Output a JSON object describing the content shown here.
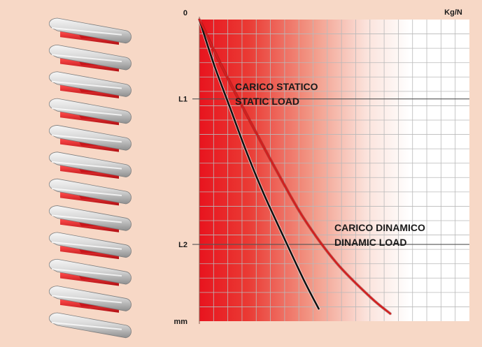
{
  "colors": {
    "background": "#f7d8c6",
    "grid_fill_start": "#e8141e",
    "grid_fill_end": "#ffffff",
    "static_curve": "#111111",
    "dynamic_curve": "#d21f1f",
    "spring_coil": "#d8d8d8",
    "spring_inner": "#e0141e"
  },
  "chart_data": {
    "type": "line",
    "title": "",
    "x_unit_label": "Kg/N",
    "y_unit_label": "mm",
    "y_tick_labels": [
      "0",
      "L1",
      "L2",
      "mm"
    ],
    "y_tick_values": [
      0,
      0.2632,
      0.7456,
      1.0
    ],
    "grid": true,
    "x_range": [
      0,
      1
    ],
    "y_range": [
      0,
      1
    ],
    "series": [
      {
        "name_lines": [
          "CARICO STATICO",
          "STATIC LOAD"
        ],
        "color": "#111111",
        "x": [
          0,
          0.054,
          0.113,
          0.172,
          0.237,
          0.31,
          0.386,
          0.442
        ],
        "y": [
          0,
          0.149,
          0.291,
          0.433,
          0.575,
          0.717,
          0.862,
          0.959
        ]
      },
      {
        "name_lines": [
          "CARICO DINAMICO",
          "DINAMIC LOAD"
        ],
        "color": "#d21f1f",
        "x": [
          0,
          0.088,
          0.183,
          0.281,
          0.386,
          0.507,
          0.634,
          0.707
        ],
        "y": [
          0,
          0.164,
          0.329,
          0.493,
          0.658,
          0.806,
          0.921,
          0.975
        ]
      }
    ]
  }
}
